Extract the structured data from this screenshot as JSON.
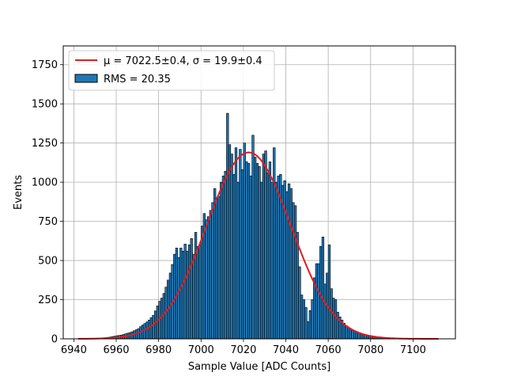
{
  "chart_data": {
    "type": "bar",
    "subtype": "histogram_with_gaussian_fit",
    "title": "",
    "xlabel": "Sample Value [ADC Counts]",
    "ylabel": "Events",
    "xlim": [
      6935,
      7120
    ],
    "ylim": [
      0,
      1870
    ],
    "xticks": [
      6940,
      6960,
      6980,
      7000,
      7020,
      7040,
      7060,
      7080,
      7100
    ],
    "yticks": [
      0,
      250,
      500,
      750,
      1000,
      1250,
      1500,
      1750
    ],
    "grid": true,
    "legend_position": "top-left",
    "legend": [
      {
        "kind": "line",
        "label": "μ = 7022.5±0.4, σ = 19.9±0.4",
        "color": "#e31a1c"
      },
      {
        "kind": "patch",
        "label": "RMS = 20.35",
        "color": "#1f77b4"
      }
    ],
    "fit": {
      "name": "Gaussian fit",
      "mu": 7022.5,
      "mu_err": 0.4,
      "sigma": 19.9,
      "sigma_err": 0.4,
      "amplitude": 1190,
      "x_range": [
        6942,
        7112
      ],
      "color": "#e31a1c"
    },
    "histogram": {
      "name": "RMS = 20.35",
      "bin_width": 1,
      "color": "#1f77b4",
      "edge_color": "#000000",
      "x": [
        6942,
        6943,
        6944,
        6945,
        6946,
        6947,
        6948,
        6949,
        6950,
        6951,
        6952,
        6953,
        6954,
        6955,
        6956,
        6957,
        6958,
        6959,
        6960,
        6961,
        6962,
        6963,
        6964,
        6965,
        6966,
        6967,
        6968,
        6969,
        6970,
        6971,
        6972,
        6973,
        6974,
        6975,
        6976,
        6977,
        6978,
        6979,
        6980,
        6981,
        6982,
        6983,
        6984,
        6985,
        6986,
        6987,
        6988,
        6989,
        6990,
        6991,
        6992,
        6993,
        6994,
        6995,
        6996,
        6997,
        6998,
        6999,
        7000,
        7001,
        7002,
        7003,
        7004,
        7005,
        7006,
        7007,
        7008,
        7009,
        7010,
        7011,
        7012,
        7013,
        7014,
        7015,
        7016,
        7017,
        7018,
        7019,
        7020,
        7021,
        7022,
        7023,
        7024,
        7025,
        7026,
        7027,
        7028,
        7029,
        7030,
        7031,
        7032,
        7033,
        7034,
        7035,
        7036,
        7037,
        7038,
        7039,
        7040,
        7041,
        7042,
        7043,
        7044,
        7045,
        7046,
        7047,
        7048,
        7049,
        7050,
        7051,
        7052,
        7053,
        7054,
        7055,
        7056,
        7057,
        7058,
        7059,
        7060,
        7061,
        7062,
        7063,
        7064,
        7065,
        7066,
        7067,
        7068,
        7069,
        7070,
        7071,
        7072,
        7073,
        7074,
        7075,
        7076,
        7077,
        7078,
        7079,
        7080,
        7081,
        7082,
        7083,
        7084,
        7085,
        7086,
        7087,
        7088,
        7089,
        7090,
        7091,
        7092,
        7093,
        7094,
        7095,
        7096,
        7097,
        7098,
        7099,
        7100,
        7101,
        7102,
        7103,
        7104,
        7105,
        7106,
        7107,
        7108,
        7109,
        7110,
        7111
      ],
      "values": [
        1,
        0,
        1,
        1,
        2,
        2,
        2,
        3,
        3,
        4,
        5,
        6,
        7,
        8,
        10,
        12,
        15,
        17,
        20,
        22,
        24,
        28,
        32,
        36,
        40,
        45,
        52,
        58,
        65,
        78,
        88,
        98,
        108,
        120,
        135,
        150,
        178,
        210,
        240,
        260,
        290,
        330,
        375,
        420,
        475,
        540,
        580,
        520,
        580,
        560,
        605,
        560,
        600,
        640,
        540,
        680,
        590,
        600,
        720,
        800,
        760,
        780,
        820,
        870,
        960,
        900,
        910,
        1000,
        1040,
        1070,
        1440,
        1240,
        1180,
        1050,
        1220,
        1000,
        1210,
        1080,
        1250,
        1130,
        1120,
        1040,
        1300,
        1160,
        1120,
        1100,
        1000,
        1180,
        1200,
        1060,
        1130,
        1000,
        1220,
        1000,
        1040,
        1050,
        980,
        1010,
        940,
        990,
        960,
        870,
        850,
        680,
        460,
        280,
        250,
        200,
        110,
        180,
        250,
        390,
        480,
        480,
        590,
        650,
        350,
        420,
        600,
        320,
        260,
        250,
        170,
        140,
        120,
        100,
        85,
        75,
        65,
        55,
        50,
        45,
        38,
        33,
        29,
        25,
        22,
        20,
        18,
        16,
        14,
        12,
        10,
        9,
        8,
        7,
        6,
        5,
        4,
        3,
        3,
        2,
        2,
        1,
        1,
        1,
        1,
        1,
        1,
        0,
        0,
        0,
        0,
        0,
        0,
        0,
        0,
        0,
        0,
        0
      ]
    }
  }
}
